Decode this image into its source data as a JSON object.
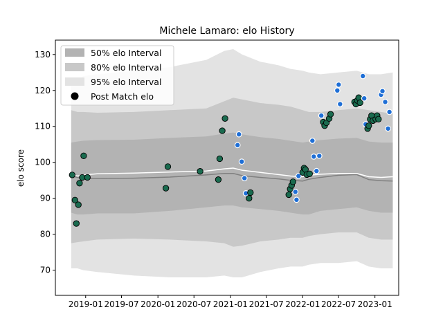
{
  "chart_data": {
    "type": "line",
    "title": "Michele Lamaro: elo History",
    "xlabel": "",
    "ylabel": "elo score",
    "xlim": [
      "2018-08-01",
      "2023-05-01"
    ],
    "ylim": [
      63,
      134
    ],
    "x_ticks": [
      "2019-01",
      "2019-07",
      "2020-01",
      "2020-07",
      "2021-01",
      "2021-07",
      "2022-01",
      "2022-07",
      "2023-01"
    ],
    "y_ticks": [
      70,
      80,
      90,
      100,
      110,
      120,
      130
    ],
    "grid": false,
    "legend": {
      "placement": "top-left",
      "entries": [
        "50% elo Interval",
        "80% elo Interval",
        "95% elo Interval",
        "Post Match elo"
      ]
    },
    "colors": {
      "band50": "#b3b3b3",
      "band80": "#c8c8c8",
      "band95": "#e3e3e3",
      "mean_line": "#ffffff",
      "median_line": "#808080",
      "win_point": "#1a6b4f",
      "loss_point": "#1f6fd6"
    },
    "bands": {
      "x": [
        "2018-10-20",
        "2018-11-20",
        "2018-12-20",
        "2019-03-01",
        "2019-09-01",
        "2020-03-01",
        "2020-09-01",
        "2020-12-01",
        "2021-01-15",
        "2021-03-01",
        "2021-06-01",
        "2021-09-01",
        "2021-11-01",
        "2022-01-01",
        "2022-02-01",
        "2022-04-01",
        "2022-07-01",
        "2022-10-01",
        "2022-12-01",
        "2023-02-01",
        "2023-04-01"
      ],
      "median": [
        96.2,
        95.8,
        95.5,
        95.5,
        95.6,
        95.9,
        96.5,
        96.9,
        96.9,
        96.3,
        95.8,
        95.4,
        95.0,
        94.8,
        95.3,
        95.8,
        96.4,
        96.6,
        95.2,
        94.9,
        94.8
      ],
      "mean": [
        96.6,
        96.2,
        96.5,
        96.8,
        97.0,
        97.3,
        97.6,
        98.2,
        98.4,
        97.8,
        97.2,
        96.6,
        96.2,
        96.0,
        96.4,
        96.7,
        96.9,
        96.9,
        96.0,
        95.8,
        96.0
      ],
      "p50_low": [
        86.0,
        85.5,
        85.5,
        85.8,
        85.8,
        86.5,
        87.5,
        88.0,
        88.0,
        87.5,
        87.0,
        86.5,
        86.0,
        85.5,
        85.5,
        86.5,
        87.0,
        87.5,
        86.5,
        86.0,
        86.0
      ],
      "p50_high": [
        105.5,
        105.8,
        106.0,
        106.2,
        106.3,
        106.8,
        107.2,
        108.0,
        108.3,
        107.8,
        107.0,
        106.5,
        106.0,
        105.5,
        105.8,
        106.2,
        106.6,
        106.8,
        105.8,
        105.5,
        105.5
      ],
      "p80_low": [
        77.5,
        77.8,
        78.0,
        78.5,
        78.8,
        78.5,
        78.0,
        77.5,
        76.5,
        76.8,
        78.0,
        78.5,
        79.0,
        79.0,
        79.5,
        80.0,
        80.5,
        80.5,
        79.0,
        78.5,
        78.5
      ],
      "p80_high": [
        114.5,
        114.0,
        114.0,
        113.8,
        114.0,
        114.5,
        115.0,
        117.0,
        118.0,
        117.5,
        116.5,
        116.0,
        115.5,
        114.5,
        114.0,
        114.0,
        114.5,
        115.0,
        114.5,
        114.0,
        113.5
      ],
      "p95_low": [
        70.5,
        70.5,
        70.0,
        69.5,
        68.5,
        68.0,
        68.0,
        68.5,
        68.0,
        68.0,
        69.5,
        70.5,
        71.0,
        71.0,
        71.5,
        72.0,
        72.0,
        72.5,
        71.0,
        70.5,
        70.5
      ],
      "p95_high": [
        122.0,
        122.5,
        124.0,
        124.5,
        125.5,
        126.5,
        128.5,
        131.0,
        131.5,
        130.0,
        128.0,
        127.0,
        126.0,
        125.5,
        125.0,
        124.5,
        125.0,
        125.5,
        124.5,
        124.5,
        125.0
      ]
    },
    "series": [
      {
        "name": "Post Match elo",
        "points": [
          {
            "x": "2018-10-25",
            "y": 96.5,
            "result": "win"
          },
          {
            "x": "2018-11-08",
            "y": 89.5,
            "result": "win"
          },
          {
            "x": "2018-11-15",
            "y": 83.0,
            "result": "win"
          },
          {
            "x": "2018-11-25",
            "y": 88.2,
            "result": "win"
          },
          {
            "x": "2018-12-01",
            "y": 94.2,
            "result": "win"
          },
          {
            "x": "2018-12-15",
            "y": 95.8,
            "result": "win"
          },
          {
            "x": "2018-12-22",
            "y": 101.8,
            "result": "win"
          },
          {
            "x": "2019-01-10",
            "y": 95.8,
            "result": "win"
          },
          {
            "x": "2020-02-10",
            "y": 92.8,
            "result": "win"
          },
          {
            "x": "2020-02-20",
            "y": 98.8,
            "result": "win"
          },
          {
            "x": "2020-08-01",
            "y": 97.5,
            "result": "win"
          },
          {
            "x": "2020-11-01",
            "y": 95.2,
            "result": "win"
          },
          {
            "x": "2020-11-08",
            "y": 101.0,
            "result": "win"
          },
          {
            "x": "2020-11-21",
            "y": 108.8,
            "result": "win"
          },
          {
            "x": "2020-12-05",
            "y": 112.2,
            "result": "win"
          },
          {
            "x": "2021-02-06",
            "y": 104.8,
            "result": "loss"
          },
          {
            "x": "2021-02-13",
            "y": 107.8,
            "result": "loss"
          },
          {
            "x": "2021-02-27",
            "y": 100.2,
            "result": "loss"
          },
          {
            "x": "2021-03-13",
            "y": 95.6,
            "result": "loss"
          },
          {
            "x": "2021-03-20",
            "y": 91.4,
            "result": "loss"
          },
          {
            "x": "2021-04-05",
            "y": 90.0,
            "result": "win"
          },
          {
            "x": "2021-04-12",
            "y": 91.6,
            "result": "win"
          },
          {
            "x": "2021-10-23",
            "y": 91.0,
            "result": "win"
          },
          {
            "x": "2021-10-30",
            "y": 92.6,
            "result": "win"
          },
          {
            "x": "2021-11-06",
            "y": 93.6,
            "result": "win"
          },
          {
            "x": "2021-11-13",
            "y": 94.6,
            "result": "win"
          },
          {
            "x": "2021-11-25",
            "y": 91.8,
            "result": "loss"
          },
          {
            "x": "2021-12-01",
            "y": 89.6,
            "result": "loss"
          },
          {
            "x": "2021-12-11",
            "y": 96.2,
            "result": "loss"
          },
          {
            "x": "2022-01-01",
            "y": 97.2,
            "result": "win"
          },
          {
            "x": "2022-01-08",
            "y": 98.4,
            "result": "win"
          },
          {
            "x": "2022-01-15",
            "y": 98.0,
            "result": "win"
          },
          {
            "x": "2022-01-22",
            "y": 96.6,
            "result": "win"
          },
          {
            "x": "2022-02-05",
            "y": 96.8,
            "result": "win"
          },
          {
            "x": "2022-02-19",
            "y": 106.0,
            "result": "loss"
          },
          {
            "x": "2022-02-26",
            "y": 101.6,
            "result": "loss"
          },
          {
            "x": "2022-03-12",
            "y": 97.6,
            "result": "loss"
          },
          {
            "x": "2022-03-26",
            "y": 101.8,
            "result": "loss"
          },
          {
            "x": "2022-04-05",
            "y": 113.0,
            "result": "loss"
          },
          {
            "x": "2022-04-15",
            "y": 111.2,
            "result": "win"
          },
          {
            "x": "2022-04-22",
            "y": 110.2,
            "result": "win"
          },
          {
            "x": "2022-05-01",
            "y": 111.0,
            "result": "win"
          },
          {
            "x": "2022-05-15",
            "y": 112.2,
            "result": "win"
          },
          {
            "x": "2022-05-22",
            "y": 113.4,
            "result": "win"
          },
          {
            "x": "2022-06-25",
            "y": 120.0,
            "result": "loss"
          },
          {
            "x": "2022-07-02",
            "y": 121.6,
            "result": "loss"
          },
          {
            "x": "2022-07-09",
            "y": 116.2,
            "result": "loss"
          },
          {
            "x": "2022-09-20",
            "y": 116.8,
            "result": "win"
          },
          {
            "x": "2022-09-27",
            "y": 116.2,
            "result": "win"
          },
          {
            "x": "2022-10-04",
            "y": 117.2,
            "result": "win"
          },
          {
            "x": "2022-10-11",
            "y": 118.0,
            "result": "win"
          },
          {
            "x": "2022-10-18",
            "y": 116.6,
            "result": "win"
          },
          {
            "x": "2022-11-01",
            "y": 124.0,
            "result": "loss"
          },
          {
            "x": "2022-11-08",
            "y": 117.8,
            "result": "loss"
          },
          {
            "x": "2022-11-15",
            "y": 110.6,
            "result": "loss"
          },
          {
            "x": "2022-11-25",
            "y": 109.4,
            "result": "win"
          },
          {
            "x": "2022-12-01",
            "y": 110.2,
            "result": "win"
          },
          {
            "x": "2022-12-08",
            "y": 112.0,
            "result": "win"
          },
          {
            "x": "2022-12-15",
            "y": 113.0,
            "result": "win"
          },
          {
            "x": "2022-12-22",
            "y": 111.6,
            "result": "win"
          },
          {
            "x": "2023-01-05",
            "y": 112.0,
            "result": "win"
          },
          {
            "x": "2023-01-12",
            "y": 113.0,
            "result": "win"
          },
          {
            "x": "2023-01-19",
            "y": 112.0,
            "result": "win"
          },
          {
            "x": "2023-02-01",
            "y": 118.8,
            "result": "loss"
          },
          {
            "x": "2023-02-08",
            "y": 119.8,
            "result": "loss"
          },
          {
            "x": "2023-02-22",
            "y": 116.8,
            "result": "loss"
          },
          {
            "x": "2023-03-08",
            "y": 109.4,
            "result": "loss"
          },
          {
            "x": "2023-03-15",
            "y": 114.0,
            "result": "loss"
          }
        ]
      }
    ]
  }
}
